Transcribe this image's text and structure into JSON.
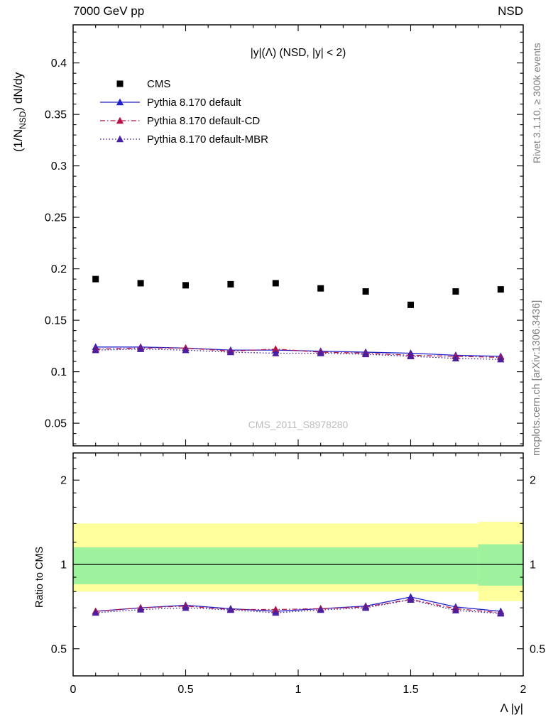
{
  "header": {
    "left_title": "7000 GeV pp",
    "right_title": "NSD"
  },
  "side_texts": {
    "rivet": "Rivet 3.1.10, ≥ 300k events",
    "mcplots": "mcplots.cern.ch [arXiv:1306.3436]"
  },
  "labels": {
    "main_ylabel_prefix": "(1/N",
    "main_ylabel_sub": "NSD",
    "main_ylabel_suffix": ") dN/dy",
    "ratio_ylabel": "Ratio to CMS",
    "xlabel": "Λ |y|",
    "plot_title": "|y|(Λ) (NSD, |y| < 2)",
    "watermark": "CMS_2011_S8978280"
  },
  "chart_data": {
    "type": "line",
    "x": [
      0.1,
      0.3,
      0.5,
      0.7,
      0.9,
      1.1,
      1.3,
      1.5,
      1.7,
      1.9
    ],
    "xlim": [
      0,
      2
    ],
    "xticks": [
      0,
      0.5,
      1,
      1.5,
      2
    ],
    "xtick_labels": [
      "0",
      "0.5",
      "1",
      "1.5",
      "2"
    ],
    "x_minor_step": 0.1,
    "xlabel": "Λ |y|",
    "colors": {
      "band_yellow": "#ffff9d",
      "band_green": "#9ef29e"
    },
    "main_panel": {
      "ylabel": "(1/N_NSD) dN/dy",
      "scale": "linear",
      "ylim": [
        0.028,
        0.437
      ],
      "yticks": [
        0.05,
        0.1,
        0.15,
        0.2,
        0.25,
        0.3,
        0.35,
        0.4
      ],
      "ytick_labels": [
        "0.05",
        "0.1",
        "0.15",
        "0.2",
        "0.25",
        "0.3",
        "0.35",
        "0.4"
      ],
      "y_minor_step": 0.01,
      "series": [
        {
          "name": "CMS",
          "color": "#000000",
          "marker": "square",
          "line": "none",
          "values": [
            0.19,
            0.186,
            0.184,
            0.185,
            0.186,
            0.181,
            0.178,
            0.165,
            0.178,
            0.18
          ]
        },
        {
          "name": "Pythia 8.170 default",
          "color": "#2121cc",
          "marker": "triangle",
          "line": "solid",
          "values": [
            0.124,
            0.124,
            0.123,
            0.121,
            0.121,
            0.12,
            0.119,
            0.118,
            0.116,
            0.115
          ]
        },
        {
          "name": "Pythia 8.170 default-CD",
          "color": "#b81347",
          "marker": "triangle",
          "line": "dashdot",
          "values": [
            0.122,
            0.123,
            0.123,
            0.12,
            0.122,
            0.119,
            0.118,
            0.116,
            0.115,
            0.114
          ]
        },
        {
          "name": "Pythia 8.170 default-MBR",
          "color": "#4a1fa0",
          "marker": "triangle",
          "line": "dotted",
          "values": [
            0.121,
            0.122,
            0.121,
            0.119,
            0.118,
            0.118,
            0.117,
            0.115,
            0.113,
            0.112
          ]
        }
      ]
    },
    "ratio_panel": {
      "ylabel": "Ratio to CMS",
      "scale": "log",
      "ylim": [
        0.4,
        2.5
      ],
      "yticks": [
        0.5,
        1,
        2
      ],
      "ytick_labels": [
        "0.5",
        "1",
        "2"
      ],
      "y_minor_ticks": [
        0.4,
        0.6,
        0.7,
        0.8,
        0.9,
        1.2,
        1.4,
        1.6,
        1.8,
        2.2,
        2.4
      ],
      "reference_line": 1,
      "bands": [
        {
          "color_key": "band_yellow",
          "segments": [
            {
              "x0": 0,
              "x1": 1.8,
              "lo": 0.8,
              "hi": 1.4
            },
            {
              "x0": 1.8,
              "x1": 2,
              "lo": 0.74,
              "hi": 1.42
            }
          ]
        },
        {
          "color_key": "band_green",
          "segments": [
            {
              "x0": 0,
              "x1": 1.8,
              "lo": 0.85,
              "hi": 1.15
            },
            {
              "x0": 1.8,
              "x1": 2,
              "lo": 0.84,
              "hi": 1.18
            }
          ]
        }
      ],
      "series": [
        {
          "name": "Pythia 8.170 default",
          "color": "#2121cc",
          "marker": "triangle",
          "line": "solid",
          "values": [
            0.68,
            0.7,
            0.715,
            0.695,
            0.68,
            0.695,
            0.71,
            0.765,
            0.705,
            0.68
          ]
        },
        {
          "name": "Pythia 8.170 default-CD",
          "color": "#b81347",
          "marker": "triangle",
          "line": "dashdot",
          "values": [
            0.68,
            0.7,
            0.71,
            0.69,
            0.69,
            0.695,
            0.705,
            0.75,
            0.695,
            0.672
          ]
        },
        {
          "name": "Pythia 8.170 default-MBR",
          "color": "#4a1fa0",
          "marker": "triangle",
          "line": "dotted",
          "values": [
            0.672,
            0.69,
            0.7,
            0.688,
            0.672,
            0.688,
            0.7,
            0.748,
            0.685,
            0.668
          ]
        }
      ]
    }
  }
}
